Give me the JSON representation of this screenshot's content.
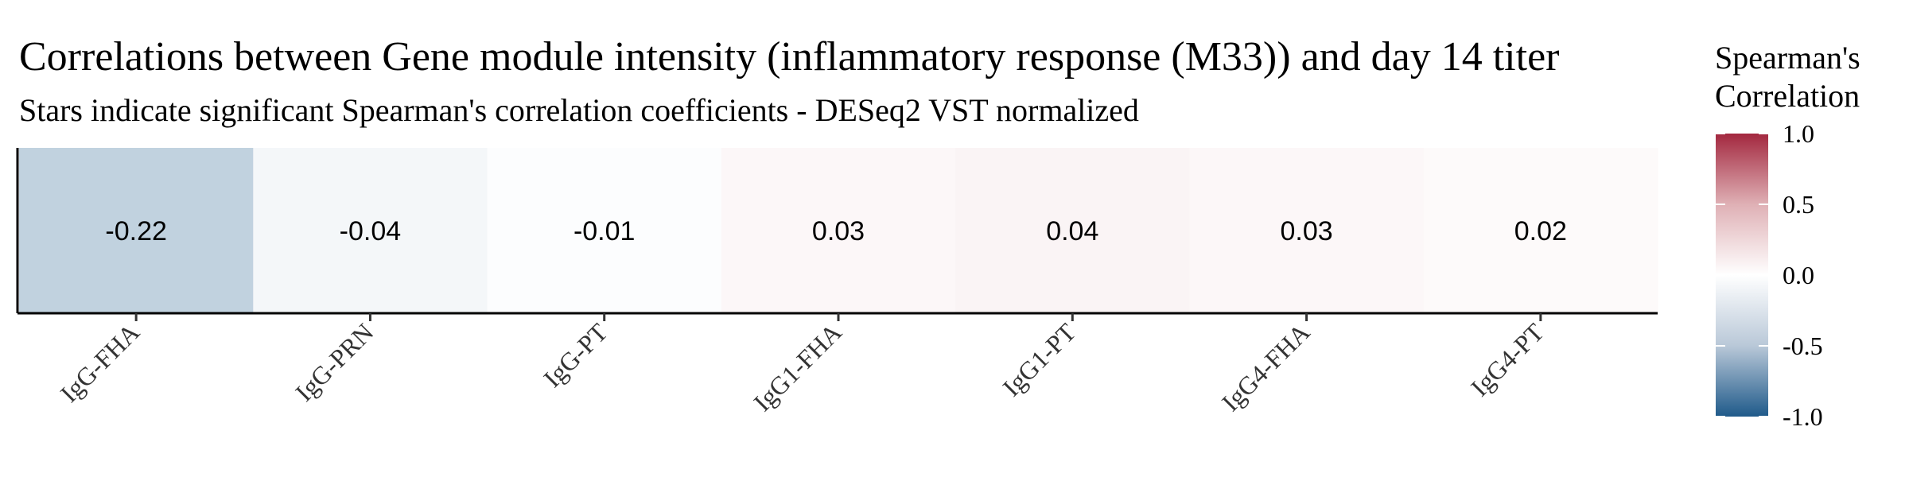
{
  "chart_data": {
    "type": "heatmap",
    "title": "Correlations between Gene module intensity (inflammatory response (M33)) and day 14 titer",
    "subtitle": "Stars indicate significant Spearman's correlation coefficients - DESeq2 VST normalized",
    "categories": [
      "IgG-FHA",
      "IgG-PRN",
      "IgG-PT",
      "IgG1-FHA",
      "IgG1-PT",
      "IgG4-FHA",
      "IgG4-PT"
    ],
    "values": [
      -0.22,
      -0.04,
      -0.01,
      0.03,
      0.04,
      0.03,
      0.02
    ],
    "value_labels": [
      "-0.22",
      "-0.04",
      "-0.01",
      "0.03",
      "0.04",
      "0.03",
      "0.02"
    ],
    "legend": {
      "title_line1": "Spearman's",
      "title_line2": "Correlation",
      "range": [
        -1.0,
        1.0
      ],
      "ticks": [
        1.0,
        0.5,
        0.0,
        -0.5,
        -1.0
      ],
      "tick_labels": [
        "1.0",
        "0.5",
        "0.0",
        "-0.5",
        "-1.0"
      ],
      "position": "right"
    },
    "colors": {
      "low": "#1f5a8a",
      "mid": "#ffffff",
      "high": "#a3283f"
    }
  }
}
